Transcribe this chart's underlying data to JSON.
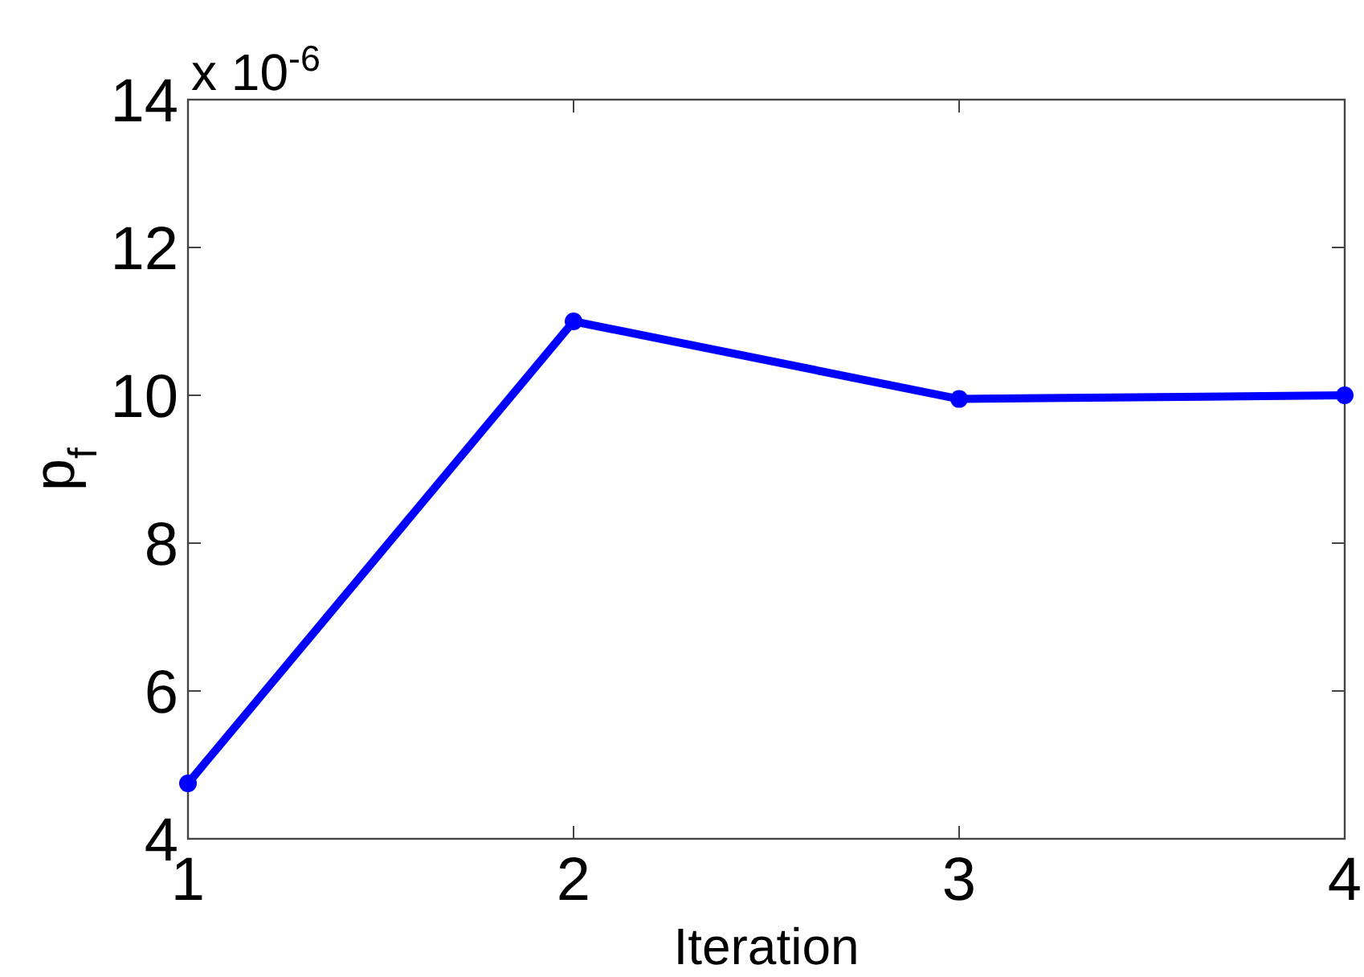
{
  "chart_data": {
    "type": "line",
    "xlabel": "Iteration",
    "ylabel": "p$_{f}$",
    "annotations": [
      "x 10$^{-6}$"
    ],
    "x": [
      1,
      2,
      3,
      4
    ],
    "series": [
      {
        "color": "#0000ff",
        "values": [
          4.75,
          11.0,
          9.95,
          10.0
        ]
      }
    ],
    "xlim": [
      1,
      4
    ],
    "xticks": [
      1,
      2,
      3,
      4
    ],
    "ylim": [
      4,
      14
    ],
    "yticks": [
      4,
      6,
      8,
      10,
      12,
      14
    ],
    "marker": "circle",
    "line_style": "solid",
    "grid": false
  }
}
